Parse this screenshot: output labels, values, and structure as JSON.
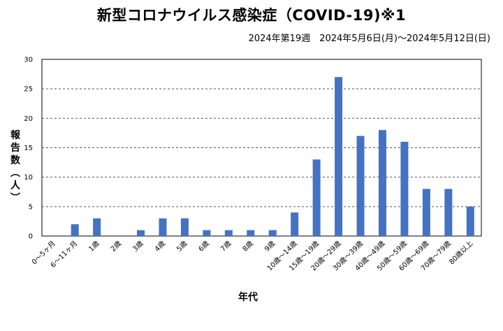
{
  "chart_data": {
    "type": "bar",
    "title": "新型コロナウイルス感染症（COVID-19)※1",
    "subtitle": "2024年第19週　2024年5月6日(月)～2024年5月12日(日)",
    "xlabel": "年代",
    "ylabel": "報告数（人）",
    "categories": [
      "0～5ヶ月",
      "6～11ヶ月",
      "1歳",
      "2歳",
      "3歳",
      "4歳",
      "5歳",
      "6歳",
      "7歳",
      "8歳",
      "9歳",
      "10歳～14歳",
      "15歳～19歳",
      "20歳～29歳",
      "30歳～39歳",
      "40歳～49歳",
      "50歳～59歳",
      "60歳～69歳",
      "70歳～79歳",
      "80歳以上"
    ],
    "values": [
      0,
      2,
      3,
      0,
      1,
      3,
      3,
      1,
      1,
      1,
      1,
      4,
      13,
      27,
      17,
      18,
      16,
      8,
      8,
      5
    ],
    "ylim": [
      0,
      30
    ],
    "yticks": [
      0,
      5,
      10,
      15,
      20,
      25,
      30
    ],
    "grid": true,
    "bar_color": "#4472c4"
  }
}
